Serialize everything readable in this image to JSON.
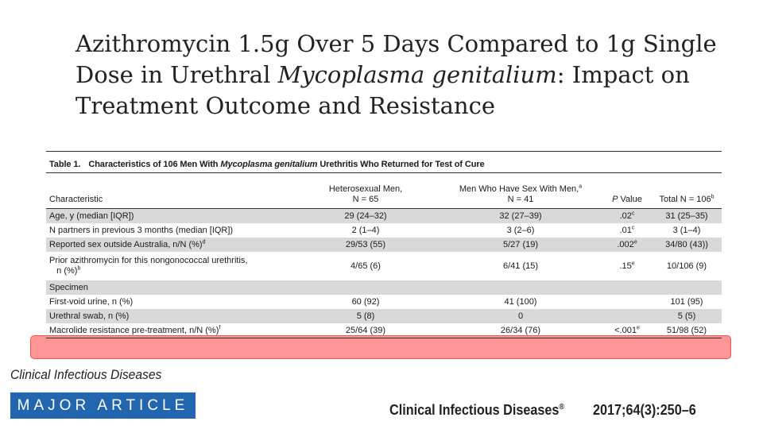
{
  "slide": {
    "title_part1": "Azithromycin 1.5g Over 5 Days Compared to 1g Single Dose in Urethral ",
    "title_italic": "Mycoplasma genitalium",
    "title_part2": ": Impact on Treatment Outcome and Resistance"
  },
  "table": {
    "number": "Table 1.",
    "caption_pre": "Characteristics of 106 Men With ",
    "caption_italic": "Mycoplasma genitalium",
    "caption_post": " Urethritis Who Returned for Test of Cure",
    "headers": {
      "characteristic": "Characteristic",
      "hetero_line1": "Heterosexual Men,",
      "hetero_line2": "N = 65",
      "msm_line1": "Men Who Have Sex With Men,",
      "msm_sup": "a",
      "msm_line2": "N = 41",
      "p_italic": "P",
      "p_rest": " Value",
      "total": "Total N = 106",
      "total_sup": "b"
    },
    "rows": [
      {
        "label": "Age, y (median [IQR])",
        "label_sup": "",
        "hetero": "29 (24–32)",
        "msm": "32 (27–39)",
        "p": ".02",
        "p_sup": "c",
        "total": "31 (25–35)"
      },
      {
        "label": "N partners in previous 3 months (median [IQR])",
        "label_sup": "",
        "hetero": "2 (1–4)",
        "msm": "3 (2–6)",
        "p": ".01",
        "p_sup": "c",
        "total": "3 (1–4)"
      },
      {
        "label": "Reported sex outside Australia, n/N (%)",
        "label_sup": "d",
        "hetero": "29/53 (55)",
        "msm": "5/27 (19)",
        "p": ".002",
        "p_sup": "e",
        "total": "34/80 (43))"
      },
      {
        "label": "Prior azithromycin for this nongonococcal urethritis,",
        "label_line2": "n (%)",
        "label_sup": "b",
        "hetero": "4/65 (6)",
        "msm": "6/41 (15)",
        "p": ".15",
        "p_sup": "e",
        "total": "10/106 (9)"
      },
      {
        "label": "Specimen",
        "label_sup": "",
        "hetero": "",
        "msm": "",
        "p": "",
        "p_sup": "",
        "total": ""
      },
      {
        "label": "First-void urine, n (%)",
        "label_sup": "",
        "hetero": "60 (92)",
        "msm": "41 (100)",
        "p": "",
        "p_sup": "",
        "total": "101 (95)"
      },
      {
        "label": "Urethral swab, n (%)",
        "label_sup": "",
        "hetero": "5 (8)",
        "msm": "0",
        "p": "",
        "p_sup": "",
        "total": "5 (5)"
      },
      {
        "label": "Macrolide resistance pre-treatment, n/N (%)",
        "label_sup": "f",
        "hetero": "25/64 (39)",
        "msm": "26/34 (76)",
        "p": "<.001",
        "p_sup": "e",
        "total": "51/98 (52)"
      }
    ]
  },
  "footer": {
    "journal_italic": "Clinical Infectious Diseases",
    "badge": "MAJOR ARTICLE",
    "journal_bold": "Clinical Infectious Diseases",
    "registered": "®",
    "reference": "2017;64(3):250–6"
  },
  "colors": {
    "badge_blue": "#2266b0",
    "row_shade": "#d9d9d9",
    "highlight_red": "#ff5050"
  }
}
